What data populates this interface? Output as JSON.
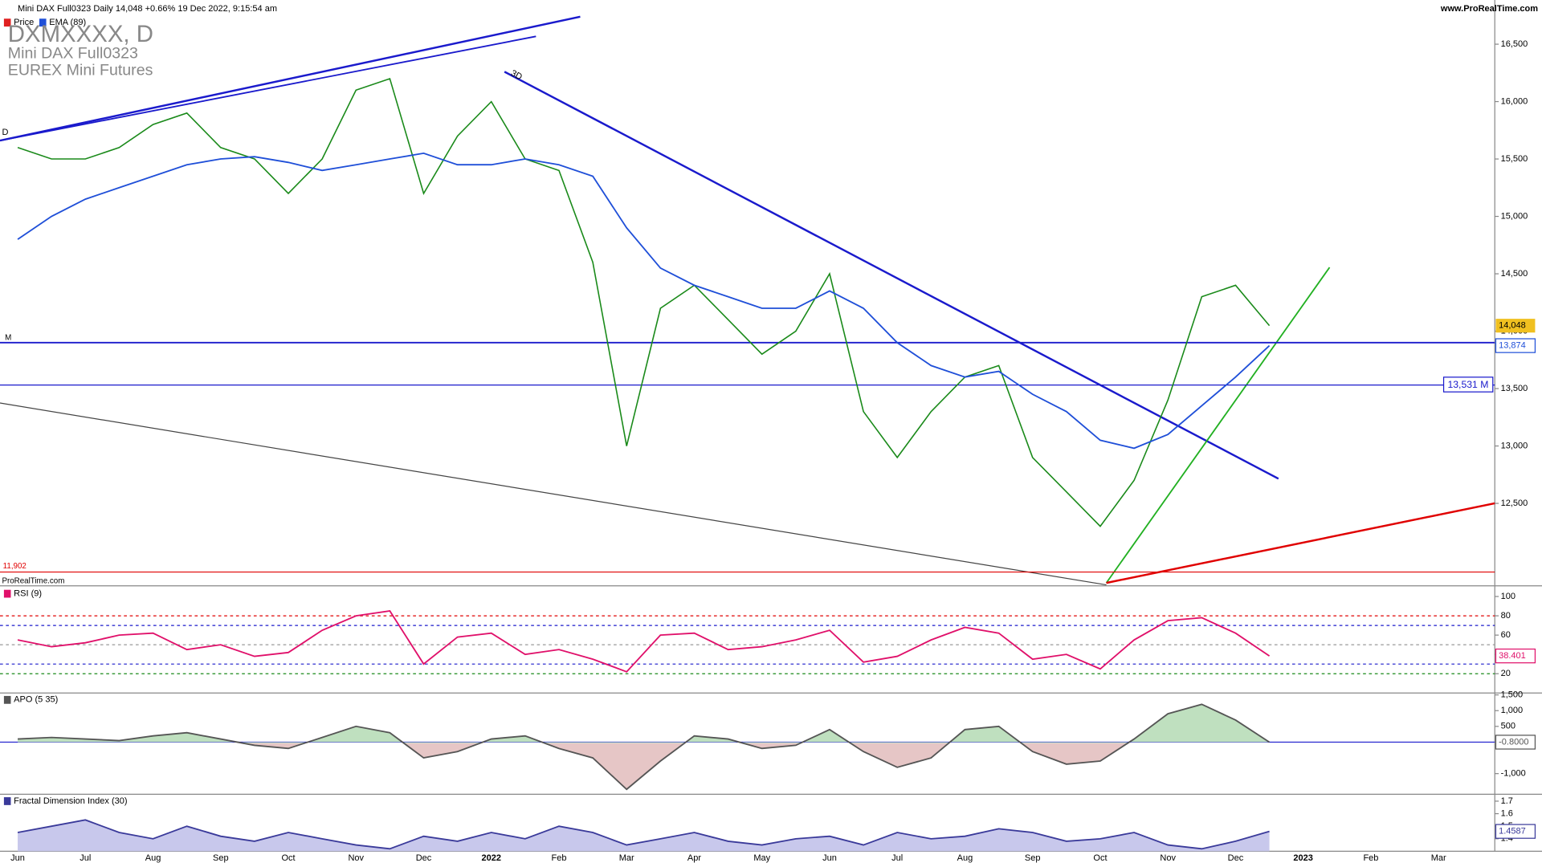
{
  "header": {
    "title": "Mini DAX Full0323 Daily 14,048 +0.66% 19 Dec 2022, 9:15:54 am",
    "site": "www.ProRealTime.com",
    "legend": [
      "Price",
      "EMA (89)"
    ],
    "symbol": "DXMXXXX, D",
    "name": "Mini DAX Full0323",
    "exchange": "EUREX Mini Futures",
    "watermark": "ProRealTime.com",
    "drawing_labels": [
      "D",
      "3D"
    ]
  },
  "chart_data": [
    {
      "type": "line",
      "title": "Price",
      "categories": [
        "Jun",
        null,
        "Jul",
        null,
        "Aug",
        null,
        "Sep",
        null,
        "Oct",
        null,
        "Nov",
        null,
        "Dec",
        null,
        "2022",
        null,
        "Feb",
        null,
        "Mar",
        null,
        "Apr",
        null,
        "May",
        null,
        "Jun",
        null,
        "Jul",
        null,
        "Aug",
        null,
        "Sep",
        null,
        "Oct",
        null,
        "Nov",
        null,
        "Dec",
        null,
        "2023",
        null,
        "Feb",
        null,
        "Mar",
        null
      ],
      "series": [
        {
          "name": "Price",
          "color": "#1a8a1a",
          "last_label": "14,048",
          "values": [
            15600,
            15500,
            15500,
            15600,
            15800,
            15900,
            15600,
            15500,
            15200,
            15500,
            16100,
            16200,
            15200,
            15700,
            16000,
            15500,
            15400,
            14600,
            13000,
            14200,
            14400,
            14100,
            13800,
            14000,
            14500,
            13300,
            12900,
            13300,
            13600,
            13700,
            12900,
            12600,
            12300,
            12700,
            13400,
            14300,
            14400,
            14048,
            null,
            null,
            null,
            null,
            null,
            null
          ]
        },
        {
          "name": "EMA (89)",
          "color": "#1f4fd8",
          "last_label": "13,874",
          "values": [
            14800,
            15000,
            15150,
            15250,
            15350,
            15450,
            15500,
            15520,
            15470,
            15400,
            15450,
            15500,
            15550,
            15450,
            15450,
            15500,
            15450,
            15350,
            14900,
            14550,
            14400,
            14300,
            14200,
            14200,
            14350,
            14200,
            13900,
            13700,
            13600,
            13650,
            13450,
            13300,
            13050,
            12980,
            13100,
            13350,
            13600,
            13874,
            null,
            null,
            null,
            null,
            null,
            null
          ]
        }
      ],
      "ylim": [
        11790,
        16885
      ],
      "yticks": [
        {
          "value": 12500,
          "label": "12,500"
        },
        {
          "value": 13000,
          "label": "13,000"
        },
        {
          "value": 13500,
          "label": "13,500"
        },
        {
          "value": 14000,
          "label": "14,000"
        },
        {
          "value": 14500,
          "label": "14,500"
        },
        {
          "value": 15000,
          "label": "15,000"
        },
        {
          "value": 15500,
          "label": "15,500"
        },
        {
          "value": 16000,
          "label": "16,000"
        },
        {
          "value": 16500,
          "label": "16,500"
        }
      ],
      "hlines": [
        {
          "value": 13900,
          "label": "M",
          "color": "#1a1acc"
        },
        {
          "value": 13531,
          "label": "13,531 M",
          "color": "#1a1acc"
        },
        {
          "value": 11902,
          "label": "11,902",
          "color": "#e00000"
        }
      ]
    },
    {
      "type": "line",
      "title": "RSI (9)",
      "series": [
        {
          "name": "RSI",
          "color": "#e0106a",
          "last_label": "38.401",
          "values": [
            55,
            48,
            52,
            60,
            62,
            45,
            50,
            38,
            42,
            65,
            80,
            85,
            30,
            58,
            62,
            40,
            45,
            35,
            22,
            60,
            62,
            45,
            48,
            55,
            65,
            32,
            38,
            55,
            68,
            62,
            35,
            40,
            25,
            55,
            75,
            78,
            62,
            38.401,
            null,
            null,
            null,
            null,
            null,
            null
          ]
        }
      ],
      "ylim": [
        0,
        110
      ],
      "yticks": [
        20,
        40,
        60,
        80,
        100
      ],
      "levels": [
        {
          "value": 80,
          "color": "#e00000"
        },
        {
          "value": 70,
          "color": "#1a1acc"
        },
        {
          "value": 50,
          "color": "#999999"
        },
        {
          "value": 30,
          "color": "#1a1acc"
        },
        {
          "value": 20,
          "color": "#1a8a1a"
        }
      ]
    },
    {
      "type": "area",
      "title": "APO (5 35)",
      "series": [
        {
          "name": "APO",
          "color": "#555555",
          "last_label": "-0.8000",
          "values": [
            100,
            150,
            100,
            50,
            200,
            300,
            100,
            -100,
            -200,
            150,
            500,
            300,
            -500,
            -300,
            100,
            200,
            -200,
            -500,
            -1500,
            -600,
            200,
            100,
            -200,
            -100,
            400,
            -300,
            -800,
            -500,
            400,
            500,
            -300,
            -700,
            -600,
            100,
            900,
            1200,
            700,
            -0.8,
            null,
            null,
            null,
            null,
            null,
            null
          ]
        }
      ],
      "ylim": [
        -1656,
        1560
      ],
      "yticks": [
        {
          "value": -1000,
          "label": "-1,000"
        },
        500,
        {
          "value": 1000,
          "label": "1,000"
        },
        {
          "value": 1500,
          "label": "1,500"
        }
      ],
      "levels": [
        {
          "value": 0,
          "color": "#1a1acc"
        }
      ]
    },
    {
      "type": "area",
      "title": "Fractal Dimension Index (30)",
      "series": [
        {
          "name": "FDI",
          "color": "#3a3a9a",
          "last_label": "1.4587",
          "values": [
            1.45,
            1.5,
            1.55,
            1.45,
            1.4,
            1.5,
            1.42,
            1.38,
            1.45,
            1.4,
            1.35,
            1.32,
            1.42,
            1.38,
            1.45,
            1.4,
            1.5,
            1.45,
            1.35,
            1.4,
            1.45,
            1.38,
            1.35,
            1.4,
            1.42,
            1.35,
            1.45,
            1.4,
            1.42,
            1.48,
            1.45,
            1.38,
            1.4,
            1.45,
            1.35,
            1.32,
            1.38,
            1.4587,
            null,
            null,
            null,
            null,
            null,
            null
          ]
        }
      ],
      "ylim": [
        1.3,
        1.755
      ],
      "yticks": [
        1.4,
        1.5,
        1.6,
        1.7
      ]
    }
  ]
}
